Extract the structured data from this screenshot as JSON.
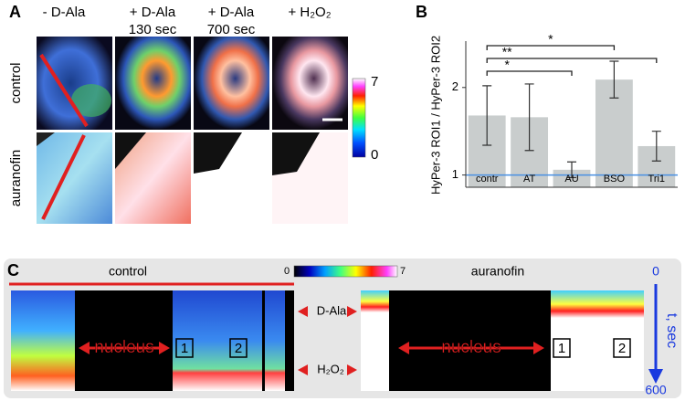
{
  "panel_a": {
    "letter": "A",
    "columns": [
      [
        "- D-Ala"
      ],
      [
        "+ D-Ala",
        "130 sec"
      ],
      [
        "+ D-Ala",
        "700 sec"
      ],
      [
        "+ H₂O₂"
      ]
    ],
    "rows": [
      "control",
      "auranofin"
    ],
    "colorbar": {
      "min": 0,
      "max": 7
    }
  },
  "chart_data": {
    "type": "bar",
    "letter": "B",
    "y_label": "HyPer-3 ROI1 / HyPer-3 ROI2",
    "categories": [
      "contr",
      "AT",
      "AU",
      "BSO",
      "Tri1"
    ],
    "values": [
      1.68,
      1.66,
      1.06,
      2.09,
      1.33
    ],
    "errors": [
      0.34,
      0.38,
      0.09,
      0.21,
      0.17
    ],
    "color": "#c9cdcd",
    "ylim": [
      0.86,
      2.53
    ],
    "yticks": [
      1,
      2
    ],
    "reference_line": {
      "value": 1,
      "color": "#4a90e2"
    },
    "comparisons": [
      {
        "label": "*",
        "between": [
          "contr",
          "BSO"
        ]
      },
      {
        "label": "**",
        "between": [
          "contr",
          "Tri1"
        ]
      },
      {
        "label": "*",
        "between": [
          "contr",
          "AU"
        ]
      }
    ]
  },
  "panel_c": {
    "letter": "C",
    "conditions": [
      "control",
      "auranofin"
    ],
    "colorbar": {
      "min": 0,
      "max": 7
    },
    "markers": [
      "D-Ala",
      "H₂O₂"
    ],
    "nucleus_labels": [
      "nucleus",
      "nucleus"
    ],
    "roi_labels": [
      [
        "1",
        "2"
      ],
      [
        "1",
        "2"
      ]
    ],
    "time_axis": {
      "label": "t, sec",
      "ticks": [
        0,
        600
      ]
    }
  }
}
